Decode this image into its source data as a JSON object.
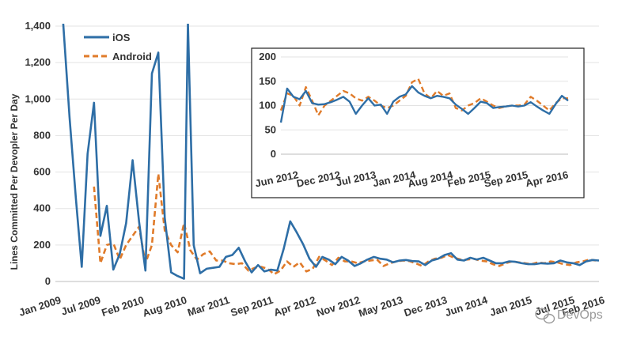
{
  "chart_data": [
    {
      "type": "line",
      "ylabel": "Lines Committed Per Devopler Per Day",
      "xlabel": "",
      "ylim": [
        0,
        1400
      ],
      "yticks": [
        "0",
        "200",
        "400",
        "600",
        "800",
        "1,000",
        "1,200",
        "1,400"
      ],
      "grid": true,
      "legend_position": "top-left",
      "x_tick_labels": [
        "Jan 2009",
        "Jul 2009",
        "Feb 2010",
        "Aug 2010",
        "Mar 2011",
        "Sep 2011",
        "Apr 2012",
        "Nov 2012",
        "May 2013",
        "Dec 2013",
        "Jun 2014",
        "Jan 2015",
        "Jul 2015",
        "Feb 2016"
      ],
      "series": [
        {
          "name": "iOS",
          "color": "#2e6ea6",
          "style": "solid",
          "points": [
            [
              1.2,
              1420
            ],
            [
              2.2,
              900
            ],
            [
              3.2,
              450
            ],
            [
              4.1,
              80
            ],
            [
              5.0,
              700
            ],
            [
              6.0,
              980
            ],
            [
              7.0,
              250
            ],
            [
              8.0,
              415
            ],
            [
              9.0,
              65
            ],
            [
              10.0,
              150
            ],
            [
              11.0,
              320
            ],
            [
              12.0,
              665
            ],
            [
              13.0,
              330
            ],
            [
              14.0,
              60
            ],
            [
              15.0,
              1140
            ],
            [
              16.0,
              1255
            ],
            [
              17.0,
              350
            ],
            [
              18.0,
              50
            ],
            [
              19.0,
              30
            ],
            [
              20.0,
              15
            ],
            [
              20.6,
              1420
            ],
            [
              21.5,
              200
            ],
            [
              22.5,
              45
            ],
            [
              23.5,
              70
            ],
            [
              24.5,
              75
            ],
            [
              25.5,
              80
            ],
            [
              26.5,
              135
            ],
            [
              27.5,
              145
            ],
            [
              28.5,
              185
            ],
            [
              29.5,
              110
            ],
            [
              30.5,
              50
            ],
            [
              31.5,
              90
            ],
            [
              32.5,
              55
            ],
            [
              33.5,
              65
            ],
            [
              34.5,
              60
            ],
            [
              35.5,
              180
            ],
            [
              36.5,
              330
            ],
            [
              37.5,
              270
            ],
            [
              38.5,
              205
            ],
            [
              39.5,
              125
            ],
            [
              40.5,
              80
            ],
            [
              41.5,
              135
            ],
            [
              42.5,
              120
            ],
            [
              43.5,
              95
            ],
            [
              44.5,
              135
            ],
            [
              45.5,
              115
            ],
            [
              46.5,
              85
            ],
            [
              47.5,
              100
            ],
            [
              48.5,
              120
            ],
            [
              49.5,
              135
            ],
            [
              50.5,
              125
            ],
            [
              51.5,
              120
            ],
            [
              52.5,
              105
            ],
            [
              53.5,
              115
            ],
            [
              54.5,
              118
            ],
            [
              55.5,
              112
            ],
            [
              56.5,
              110
            ],
            [
              57.5,
              90
            ],
            [
              58.5,
              115
            ],
            [
              59.5,
              125
            ],
            [
              60.5,
              145
            ],
            [
              61.5,
              155
            ],
            [
              62.5,
              120
            ],
            [
              63.5,
              115
            ],
            [
              64.5,
              130
            ],
            [
              65.5,
              120
            ],
            [
              66.5,
              130
            ],
            [
              67.5,
              115
            ],
            [
              68.5,
              100
            ],
            [
              69.5,
              100
            ],
            [
              70.5,
              110
            ],
            [
              71.5,
              108
            ],
            [
              72.5,
              100
            ],
            [
              73.5,
              95
            ],
            [
              74.5,
              95
            ],
            [
              75.5,
              100
            ],
            [
              76.5,
              98
            ],
            [
              77.5,
              100
            ],
            [
              78.5,
              115
            ],
            [
              79.5,
              105
            ],
            [
              80.5,
              100
            ],
            [
              81.5,
              90
            ],
            [
              82.5,
              110
            ],
            [
              83.5,
              118
            ],
            [
              84.5,
              115
            ]
          ]
        },
        {
          "name": "Android",
          "color": "#e07b2a",
          "style": "dashed",
          "points": [
            [
              6.0,
              520
            ],
            [
              7.0,
              100
            ],
            [
              8.0,
              200
            ],
            [
              9.0,
              210
            ],
            [
              10.0,
              120
            ],
            [
              11.0,
              200
            ],
            [
              12.0,
              250
            ],
            [
              13.0,
              300
            ],
            [
              14.0,
              100
            ],
            [
              15.0,
              200
            ],
            [
              16.0,
              590
            ],
            [
              17.0,
              280
            ],
            [
              18.0,
              200
            ],
            [
              19.0,
              160
            ],
            [
              20.0,
              320
            ],
            [
              21.0,
              170
            ],
            [
              22.0,
              120
            ],
            [
              23.0,
              150
            ],
            [
              24.0,
              165
            ],
            [
              25.0,
              115
            ],
            [
              26.0,
              115
            ],
            [
              27.0,
              100
            ],
            [
              28.0,
              95
            ],
            [
              29.0,
              100
            ],
            [
              30.0,
              60
            ],
            [
              31.0,
              75
            ],
            [
              32.0,
              80
            ],
            [
              33.0,
              70
            ],
            [
              34.0,
              40
            ],
            [
              35.0,
              60
            ],
            [
              36.0,
              110
            ],
            [
              37.0,
              80
            ],
            [
              38.0,
              105
            ],
            [
              39.0,
              55
            ],
            [
              40.0,
              70
            ],
            [
              41.0,
              135
            ],
            [
              42.0,
              115
            ],
            [
              43.0,
              90
            ],
            [
              44.0,
              130
            ],
            [
              45.0,
              110
            ],
            [
              46.0,
              110
            ],
            [
              47.0,
              100
            ],
            [
              48.0,
              110
            ],
            [
              49.0,
              115
            ],
            [
              50.0,
              120
            ],
            [
              51.0,
              85
            ],
            [
              52.0,
              100
            ],
            [
              53.0,
              110
            ],
            [
              54.0,
              115
            ],
            [
              55.0,
              112
            ],
            [
              56.0,
              100
            ],
            [
              57.0,
              85
            ],
            [
              58.0,
              110
            ],
            [
              59.0,
              125
            ],
            [
              60.0,
              130
            ],
            [
              61.0,
              145
            ],
            [
              62.0,
              130
            ],
            [
              63.0,
              120
            ],
            [
              64.0,
              120
            ],
            [
              65.0,
              125
            ],
            [
              66.0,
              115
            ],
            [
              67.0,
              110
            ],
            [
              68.0,
              95
            ],
            [
              69.0,
              85
            ],
            [
              70.0,
              100
            ],
            [
              71.0,
              110
            ],
            [
              72.0,
              105
            ],
            [
              73.0,
              100
            ],
            [
              74.0,
              95
            ],
            [
              75.0,
              105
            ],
            [
              76.0,
              100
            ],
            [
              77.0,
              110
            ],
            [
              78.0,
              105
            ],
            [
              79.0,
              95
            ],
            [
              80.0,
              90
            ],
            [
              81.0,
              105
            ],
            [
              82.0,
              110
            ],
            [
              83.0,
              120
            ],
            [
              84.0,
              115
            ]
          ]
        }
      ]
    },
    {
      "type": "line",
      "inset": true,
      "ylim": [
        0,
        200
      ],
      "yticks": [
        "0",
        "50",
        "100",
        "150",
        "200"
      ],
      "grid": true,
      "x_tick_labels": [
        "Jun 2012",
        "Dec 2012",
        "Jul 2013",
        "Jan 2014",
        "Aug 2014",
        "Feb 2015",
        "Sep 2015",
        "Apr 2016"
      ],
      "series": [
        {
          "name": "iOS",
          "color": "#2e6ea6",
          "style": "solid",
          "points": [
            [
              0,
              65
            ],
            [
              1,
              135
            ],
            [
              2,
              118
            ],
            [
              3,
              113
            ],
            [
              4,
              130
            ],
            [
              5,
              105
            ],
            [
              6,
              102
            ],
            [
              7,
              103
            ],
            [
              8,
              107
            ],
            [
              9,
              112
            ],
            [
              10,
              118
            ],
            [
              11,
              108
            ],
            [
              12,
              83
            ],
            [
              13,
              100
            ],
            [
              14,
              115
            ],
            [
              15,
              100
            ],
            [
              16,
              102
            ],
            [
              17,
              83
            ],
            [
              18,
              108
            ],
            [
              19,
              118
            ],
            [
              20,
              123
            ],
            [
              21,
              140
            ],
            [
              22,
              127
            ],
            [
              23,
              120
            ],
            [
              24,
              115
            ],
            [
              25,
              120
            ],
            [
              26,
              118
            ],
            [
              27,
              115
            ],
            [
              28,
              102
            ],
            [
              29,
              93
            ],
            [
              30,
              83
            ],
            [
              31,
              95
            ],
            [
              32,
              108
            ],
            [
              33,
              105
            ],
            [
              34,
              95
            ],
            [
              35,
              97
            ],
            [
              36,
              98
            ],
            [
              37,
              100
            ],
            [
              38,
              98
            ],
            [
              39,
              100
            ],
            [
              40,
              107
            ],
            [
              41,
              98
            ],
            [
              42,
              90
            ],
            [
              43,
              83
            ],
            [
              44,
              103
            ],
            [
              45,
              120
            ],
            [
              46,
              110
            ]
          ]
        },
        {
          "name": "Android",
          "color": "#e07b2a",
          "style": "dashed",
          "points": [
            [
              0,
              90
            ],
            [
              1,
              125
            ],
            [
              2,
              120
            ],
            [
              3,
              100
            ],
            [
              4,
              138
            ],
            [
              5,
              110
            ],
            [
              6,
              80
            ],
            [
              7,
              100
            ],
            [
              8,
              110
            ],
            [
              9,
              120
            ],
            [
              10,
              130
            ],
            [
              11,
              125
            ],
            [
              12,
              115
            ],
            [
              13,
              110
            ],
            [
              14,
              118
            ],
            [
              15,
              110
            ],
            [
              16,
              100
            ],
            [
              17,
              95
            ],
            [
              18,
              100
            ],
            [
              19,
              110
            ],
            [
              20,
              120
            ],
            [
              21,
              148
            ],
            [
              22,
              155
            ],
            [
              23,
              125
            ],
            [
              24,
              115
            ],
            [
              25,
              130
            ],
            [
              26,
              120
            ],
            [
              27,
              125
            ],
            [
              28,
              95
            ],
            [
              29,
              90
            ],
            [
              30,
              100
            ],
            [
              31,
              105
            ],
            [
              32,
              115
            ],
            [
              33,
              108
            ],
            [
              34,
              100
            ],
            [
              35,
              95
            ],
            [
              36,
              98
            ],
            [
              37,
              100
            ],
            [
              38,
              100
            ],
            [
              39,
              102
            ],
            [
              40,
              118
            ],
            [
              41,
              110
            ],
            [
              42,
              100
            ],
            [
              43,
              90
            ],
            [
              44,
              105
            ],
            [
              45,
              115
            ],
            [
              46,
              115
            ]
          ]
        }
      ]
    }
  ],
  "watermark": "DevOps"
}
